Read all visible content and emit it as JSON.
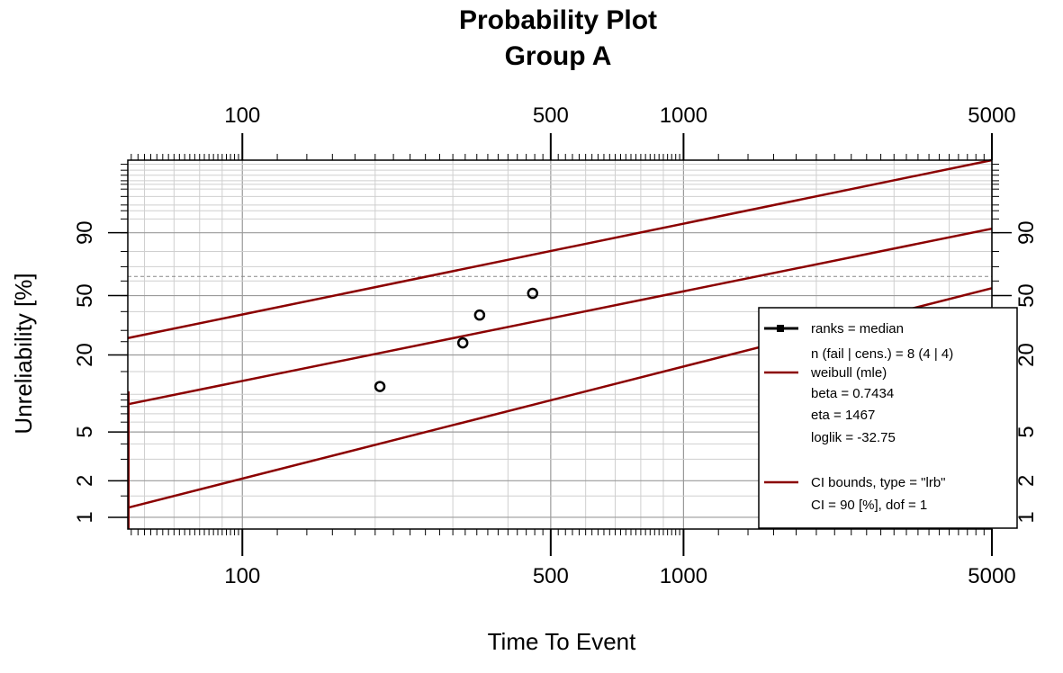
{
  "chart_data": {
    "type": "scatter",
    "title": "Probability Plot",
    "subtitle": "Group A",
    "xlabel": "Time To Event",
    "ylabel": "Unreliability [%]",
    "x_scale": "log",
    "y_scale": "weibull",
    "xlim": [
      55,
      5000
    ],
    "ylim": [
      0.8,
      99.99
    ],
    "x_ticks": [
      100,
      500,
      1000,
      5000
    ],
    "x_tick_labels": [
      "100",
      "500",
      "1000",
      "5000"
    ],
    "y_ticks": [
      1,
      2,
      5,
      20,
      50,
      90
    ],
    "y_tick_labels": [
      "1",
      "2",
      "5",
      "20",
      "50",
      "90"
    ],
    "grid": true,
    "points": [
      {
        "x": 205,
        "y": 11.5
      },
      {
        "x": 316,
        "y": 24.5
      },
      {
        "x": 345,
        "y": 38.0
      },
      {
        "x": 455,
        "y": 51.5
      }
    ],
    "series": [
      {
        "kind": "fit",
        "color": "#8b0000",
        "beta": 0.7434,
        "eta": 1467
      },
      {
        "kind": "ci_upper",
        "color": "#8b0000",
        "points": [
          [
            55,
            26.5
          ],
          [
            5000,
            99.99
          ]
        ]
      },
      {
        "kind": "ci_lower",
        "color": "#8b0000",
        "points": [
          [
            55,
            1.2
          ],
          [
            5000,
            55.0
          ]
        ]
      }
    ],
    "reference_line_y": 63.2,
    "legend": {
      "position": "bottom-right",
      "entries": [
        {
          "style": "black-marker",
          "lines": [
            "ranks = median",
            "n (fail | cens.) = 8 (4 | 4)"
          ]
        },
        {
          "style": "red-line",
          "lines": [
            "weibull (mle)",
            "beta = 0.7434",
            "eta = 1467",
            "loglik = -32.75"
          ]
        },
        {
          "style": "red-line",
          "lines": [
            "CI bounds, type = \"lrb\"",
            "   CI = 90 [%], dof = 1"
          ]
        }
      ]
    }
  }
}
